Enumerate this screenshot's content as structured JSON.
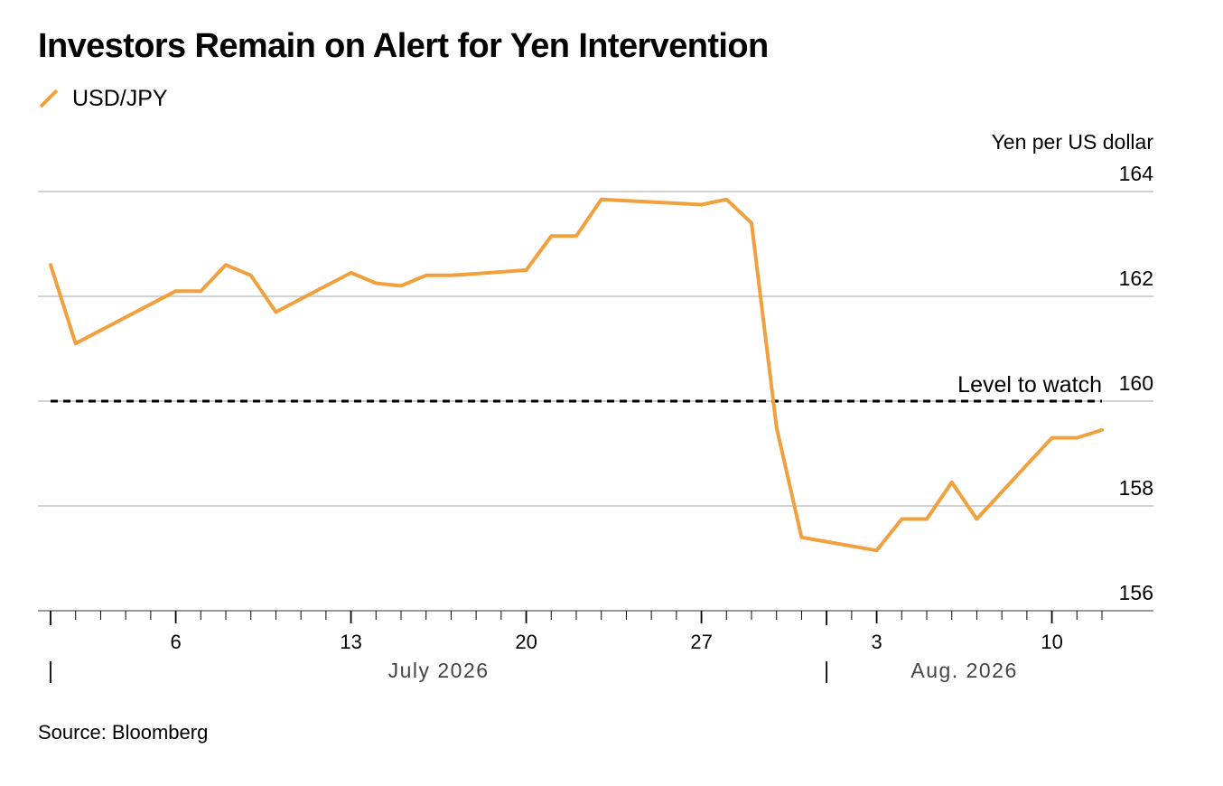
{
  "title": "Investors Remain on Alert for Yen Intervention",
  "source": "Source: Bloomberg",
  "colors": {
    "series": "#f0a03c",
    "grid": "#c4c4c4",
    "threshold": "#000000",
    "axis": "#999999",
    "month_label": "#444444"
  },
  "chart_data": {
    "type": "line",
    "ylabel": "Yen per US dollar",
    "ylim": [
      156,
      164
    ],
    "yticks": [
      156,
      158,
      160,
      162,
      164
    ],
    "y_axis_position": "right",
    "grid": true,
    "legend_position": "top-left",
    "xlim": [
      "2026-07-01",
      "2026-08-12"
    ],
    "xticks": [
      {
        "date": "2026-07-06",
        "label": "6"
      },
      {
        "date": "2026-07-13",
        "label": "13"
      },
      {
        "date": "2026-07-20",
        "label": "20"
      },
      {
        "date": "2026-07-27",
        "label": "27"
      },
      {
        "date": "2026-08-03",
        "label": "3"
      },
      {
        "date": "2026-08-10",
        "label": "10"
      }
    ],
    "months": [
      {
        "label": "July 2026",
        "start": "2026-07-01",
        "end": "2026-08-01"
      },
      {
        "label": "Aug. 2026",
        "start": "2026-08-01",
        "end": "2026-08-12"
      }
    ],
    "threshold": {
      "value": 160,
      "label": "Level to watch"
    },
    "series": [
      {
        "name": "USD/JPY",
        "points": [
          [
            "2026-07-01",
            162.6
          ],
          [
            "2026-07-02",
            161.1
          ],
          [
            "2026-07-06",
            162.1
          ],
          [
            "2026-07-07",
            162.1
          ],
          [
            "2026-07-08",
            162.6
          ],
          [
            "2026-07-09",
            162.4
          ],
          [
            "2026-07-10",
            161.7
          ],
          [
            "2026-07-13",
            162.45
          ],
          [
            "2026-07-14",
            162.25
          ],
          [
            "2026-07-15",
            162.2
          ],
          [
            "2026-07-16",
            162.4
          ],
          [
            "2026-07-17",
            162.4
          ],
          [
            "2026-07-20",
            162.5
          ],
          [
            "2026-07-21",
            163.15
          ],
          [
            "2026-07-22",
            163.15
          ],
          [
            "2026-07-23",
            163.85
          ],
          [
            "2026-07-27",
            163.75
          ],
          [
            "2026-07-28",
            163.85
          ],
          [
            "2026-07-29",
            163.4
          ],
          [
            "2026-07-30",
            159.5
          ],
          [
            "2026-07-31",
            157.4
          ],
          [
            "2026-08-03",
            157.15
          ],
          [
            "2026-08-04",
            157.75
          ],
          [
            "2026-08-05",
            157.75
          ],
          [
            "2026-08-06",
            158.45
          ],
          [
            "2026-08-07",
            157.75
          ],
          [
            "2026-08-10",
            159.3
          ],
          [
            "2026-08-11",
            159.3
          ],
          [
            "2026-08-12",
            159.45
          ]
        ]
      }
    ]
  }
}
